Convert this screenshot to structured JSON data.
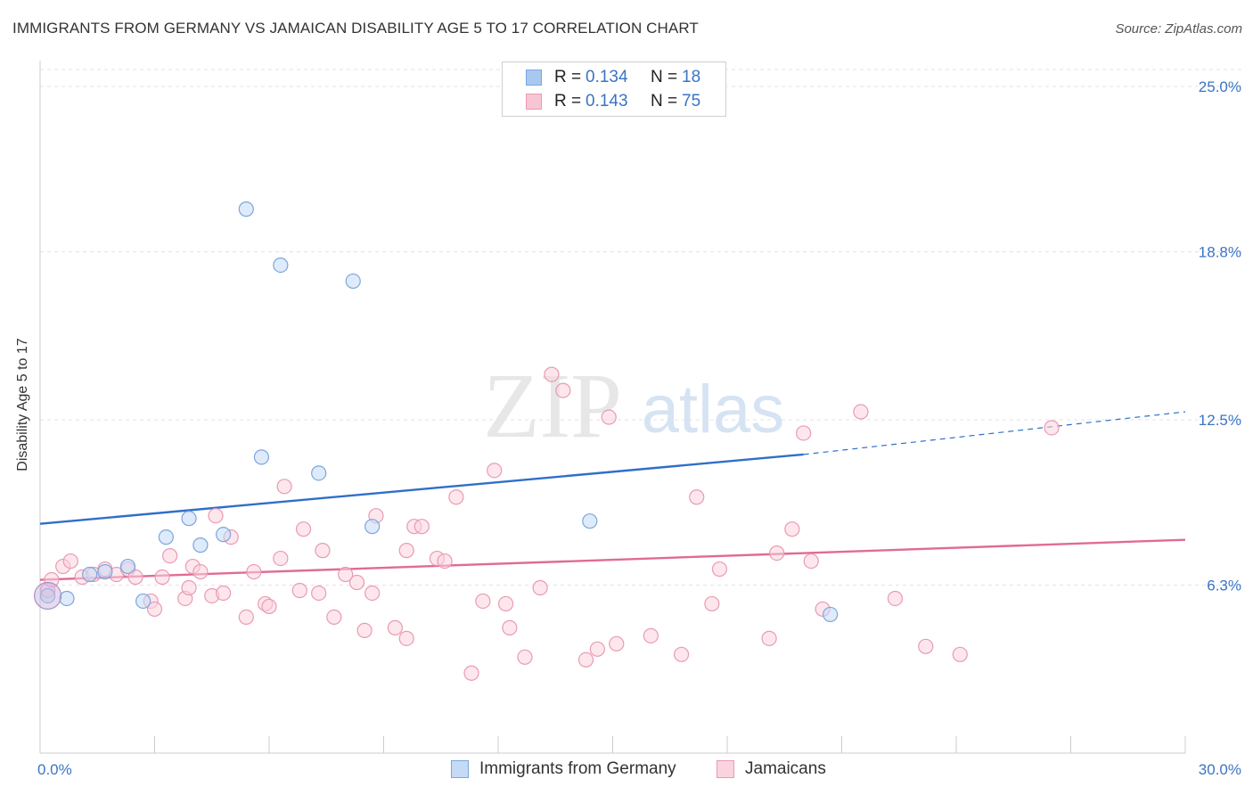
{
  "header": {
    "title": "IMMIGRANTS FROM GERMANY VS JAMAICAN DISABILITY AGE 5 TO 17 CORRELATION CHART",
    "source": "Source: ZipAtlas.com"
  },
  "watermark": {
    "zip": "ZIP",
    "atlas": "atlas"
  },
  "legend_top": {
    "rows": [
      {
        "r_label": "R =",
        "r_value": "0.134",
        "n_label": "N =",
        "n_value": "18",
        "color": "#a9c8f0",
        "border": "#7aa6de"
      },
      {
        "r_label": "R =",
        "r_value": "0.143",
        "n_label": "N =",
        "n_value": "75",
        "color": "#f8c5d4",
        "border": "#e99ab3"
      }
    ]
  },
  "legend_bottom": {
    "items": [
      {
        "label": "Immigrants from Germany",
        "color": "#c5daf5",
        "border": "#7aa6de"
      },
      {
        "label": "Jamaicans",
        "color": "#fbd3df",
        "border": "#e99ab3"
      }
    ]
  },
  "chart_data": {
    "type": "scatter",
    "title": "IMMIGRANTS FROM GERMANY VS JAMAICAN DISABILITY AGE 5 TO 17 CORRELATION CHART",
    "xlabel": "",
    "ylabel": "Disability Age 5 to 17",
    "xlim": [
      0,
      30
    ],
    "ylim": [
      0,
      25
    ],
    "x_tick_labels": [
      "0.0%",
      "30.0%"
    ],
    "y_ticks": [
      6.3,
      12.5,
      18.8,
      25.0
    ],
    "y_tick_labels": [
      "6.3%",
      "12.5%",
      "18.8%",
      "25.0%"
    ],
    "grid": "horizontal dashed",
    "legend_position": "top-center",
    "series": [
      {
        "name": "Immigrants from Germany",
        "color": "#7aa6de",
        "fill": "#c5daf5",
        "trend": {
          "x": [
            0,
            20
          ],
          "y": [
            8.6,
            11.2
          ],
          "color": "#2f6fc8",
          "dashed_extension_to": [
            30,
            12.8
          ]
        },
        "points": [
          [
            0.2,
            5.9
          ],
          [
            0.7,
            5.8
          ],
          [
            1.3,
            6.7
          ],
          [
            1.7,
            6.8
          ],
          [
            2.3,
            7.0
          ],
          [
            2.7,
            5.7
          ],
          [
            3.3,
            8.1
          ],
          [
            3.9,
            8.8
          ],
          [
            4.2,
            7.8
          ],
          [
            4.8,
            8.2
          ],
          [
            5.4,
            20.4
          ],
          [
            5.8,
            11.1
          ],
          [
            6.3,
            18.3
          ],
          [
            7.3,
            10.5
          ],
          [
            8.2,
            17.7
          ],
          [
            8.7,
            8.5
          ],
          [
            14.4,
            8.7
          ],
          [
            20.7,
            5.2
          ]
        ]
      },
      {
        "name": "Jamaicans",
        "color": "#e99ab3",
        "fill": "#fbd3df",
        "trend": {
          "x": [
            0,
            30
          ],
          "y": [
            6.5,
            8.0
          ],
          "color": "#e06b94"
        },
        "points": [
          [
            0.2,
            6.1
          ],
          [
            0.6,
            7.0
          ],
          [
            0.8,
            7.2
          ],
          [
            1.1,
            6.6
          ],
          [
            1.4,
            6.7
          ],
          [
            1.7,
            6.9
          ],
          [
            2.0,
            6.7
          ],
          [
            2.3,
            6.9
          ],
          [
            2.5,
            6.6
          ],
          [
            2.9,
            5.7
          ],
          [
            3.0,
            5.4
          ],
          [
            3.2,
            6.6
          ],
          [
            3.4,
            7.4
          ],
          [
            3.8,
            5.8
          ],
          [
            3.9,
            6.2
          ],
          [
            4.0,
            7.0
          ],
          [
            4.2,
            6.8
          ],
          [
            4.5,
            5.9
          ],
          [
            4.6,
            8.9
          ],
          [
            4.8,
            6.0
          ],
          [
            5.0,
            8.1
          ],
          [
            5.4,
            5.1
          ],
          [
            5.6,
            6.8
          ],
          [
            5.9,
            5.6
          ],
          [
            6.0,
            5.5
          ],
          [
            6.3,
            7.3
          ],
          [
            6.4,
            10.0
          ],
          [
            6.8,
            6.1
          ],
          [
            6.9,
            8.4
          ],
          [
            7.3,
            6.0
          ],
          [
            7.4,
            7.6
          ],
          [
            7.7,
            5.1
          ],
          [
            8.0,
            6.7
          ],
          [
            8.3,
            6.4
          ],
          [
            8.5,
            4.6
          ],
          [
            8.7,
            6.0
          ],
          [
            8.8,
            8.9
          ],
          [
            9.3,
            4.7
          ],
          [
            9.6,
            4.3
          ],
          [
            9.8,
            8.5
          ],
          [
            10.0,
            8.5
          ],
          [
            10.4,
            7.3
          ],
          [
            10.6,
            7.2
          ],
          [
            10.9,
            9.6
          ],
          [
            11.3,
            3.0
          ],
          [
            11.6,
            5.7
          ],
          [
            11.9,
            10.6
          ],
          [
            12.2,
            5.6
          ],
          [
            12.3,
            4.7
          ],
          [
            12.7,
            3.6
          ],
          [
            13.1,
            6.2
          ],
          [
            13.4,
            14.2
          ],
          [
            13.7,
            13.6
          ],
          [
            14.3,
            3.5
          ],
          [
            14.6,
            3.9
          ],
          [
            14.9,
            12.6
          ],
          [
            15.1,
            4.1
          ],
          [
            16.0,
            4.4
          ],
          [
            16.8,
            3.7
          ],
          [
            17.2,
            9.6
          ],
          [
            17.6,
            5.6
          ],
          [
            17.8,
            6.9
          ],
          [
            19.1,
            4.3
          ],
          [
            19.3,
            7.5
          ],
          [
            19.7,
            8.4
          ],
          [
            20.0,
            12.0
          ],
          [
            20.2,
            7.2
          ],
          [
            20.5,
            5.4
          ],
          [
            21.5,
            12.8
          ],
          [
            22.4,
            5.8
          ],
          [
            23.2,
            4.0
          ],
          [
            24.1,
            3.7
          ],
          [
            26.5,
            12.2
          ],
          [
            0.3,
            6.5
          ],
          [
            9.6,
            7.6
          ]
        ]
      }
    ]
  }
}
